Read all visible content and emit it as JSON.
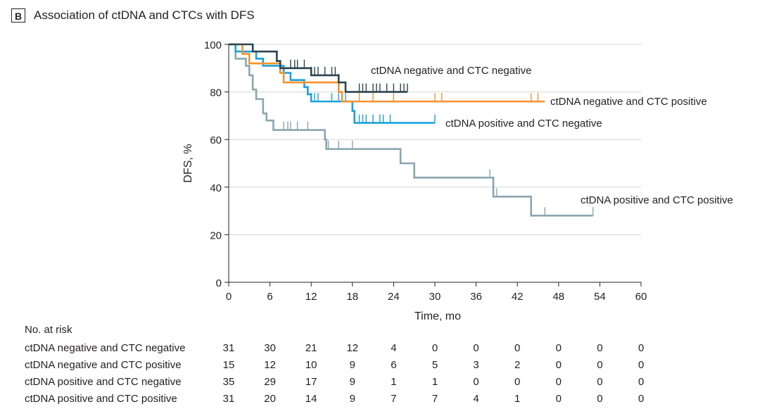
{
  "panel": {
    "letter": "B",
    "title": "Association of ctDNA and CTCs with DFS"
  },
  "chart_data": {
    "type": "line",
    "subtype": "kaplan-meier",
    "xlabel": "Time, mo",
    "ylabel": "DFS, %",
    "xlim": [
      0,
      60
    ],
    "ylim": [
      0,
      100
    ],
    "xticks": [
      0,
      6,
      12,
      18,
      24,
      30,
      36,
      42,
      48,
      54,
      60
    ],
    "yticks": [
      0,
      20,
      40,
      60,
      80,
      100
    ],
    "grid": "horizontal",
    "series": [
      {
        "name": "ctDNA negative and CTC negative",
        "color": "#2d4450",
        "steps": [
          [
            0,
            100
          ],
          [
            3.5,
            97
          ],
          [
            7,
            93
          ],
          [
            7.5,
            90
          ],
          [
            12,
            87
          ],
          [
            16,
            84
          ],
          [
            17,
            80
          ],
          [
            26,
            80
          ]
        ],
        "censor": [
          9,
          9.6,
          10,
          11,
          12,
          12.5,
          13,
          14,
          15,
          15.5,
          16,
          19,
          19.5,
          20,
          21,
          21.5,
          22,
          23,
          24,
          25,
          25.5,
          26
        ]
      },
      {
        "name": "ctDNA negative and CTC positive",
        "color": "#f5922e",
        "steps": [
          [
            0,
            100
          ],
          [
            2,
            96
          ],
          [
            3,
            92
          ],
          [
            7.5,
            88
          ],
          [
            8,
            84
          ],
          [
            16,
            80
          ],
          [
            16.5,
            76
          ],
          [
            46,
            76
          ]
        ],
        "censor": [
          2,
          7.5,
          16,
          19,
          21,
          24,
          30,
          31,
          44,
          45
        ]
      },
      {
        "name": "ctDNA positive and CTC negative",
        "color": "#1aa2dc",
        "steps": [
          [
            0,
            100
          ],
          [
            1,
            97
          ],
          [
            4,
            94
          ],
          [
            5,
            91
          ],
          [
            8,
            88
          ],
          [
            9,
            85
          ],
          [
            11,
            82
          ],
          [
            11.5,
            79
          ],
          [
            12,
            76
          ],
          [
            18,
            72
          ],
          [
            18.3,
            67
          ],
          [
            30,
            67
          ]
        ],
        "censor": [
          11.5,
          12,
          12.5,
          13,
          15,
          16,
          17,
          19,
          19.5,
          20,
          21,
          22,
          22.5,
          23.5,
          30
        ]
      },
      {
        "name": "ctDNA positive and CTC positive",
        "color": "#8aa6b1",
        "steps": [
          [
            0,
            100
          ],
          [
            1,
            94
          ],
          [
            2.5,
            91
          ],
          [
            3,
            87
          ],
          [
            3.5,
            81
          ],
          [
            4,
            77
          ],
          [
            5,
            71
          ],
          [
            5.5,
            68
          ],
          [
            6.5,
            64
          ],
          [
            14,
            60
          ],
          [
            14.2,
            56
          ],
          [
            25,
            50
          ],
          [
            27,
            44
          ],
          [
            38.5,
            36
          ],
          [
            44,
            28
          ],
          [
            53,
            28
          ]
        ],
        "censor": [
          8,
          8.6,
          9,
          10,
          11.5,
          14.5,
          16,
          18,
          38,
          39,
          46,
          53
        ]
      }
    ],
    "series_labels": [
      "ctDNA negative and CTC negative",
      "ctDNA negative and CTC positive",
      "ctDNA positive and CTC negative",
      "ctDNA positive and CTC positive"
    ]
  },
  "risk_table": {
    "header": "No. at risk",
    "times": [
      0,
      6,
      12,
      18,
      24,
      30,
      36,
      42,
      48,
      54,
      60
    ],
    "rows": [
      {
        "label": "ctDNA negative and CTC negative",
        "values": [
          "31",
          "30",
          "21",
          "12",
          "4",
          "0",
          "0",
          "0",
          "0",
          "0",
          "0"
        ]
      },
      {
        "label": "ctDNA negative and CTC positive",
        "values": [
          "15",
          "12",
          "10",
          "9",
          "6",
          "5",
          "3",
          "2",
          "0",
          "0",
          "0"
        ]
      },
      {
        "label": "ctDNA positive and CTC negative",
        "values": [
          "35",
          "29",
          "17",
          "9",
          "1",
          "1",
          "0",
          "0",
          "0",
          "0",
          "0"
        ]
      },
      {
        "label": "ctDNA positive and CTC positive",
        "values": [
          "31",
          "20",
          "14",
          "9",
          "7",
          "7",
          "4",
          "1",
          "0",
          "0",
          "0"
        ]
      }
    ]
  }
}
